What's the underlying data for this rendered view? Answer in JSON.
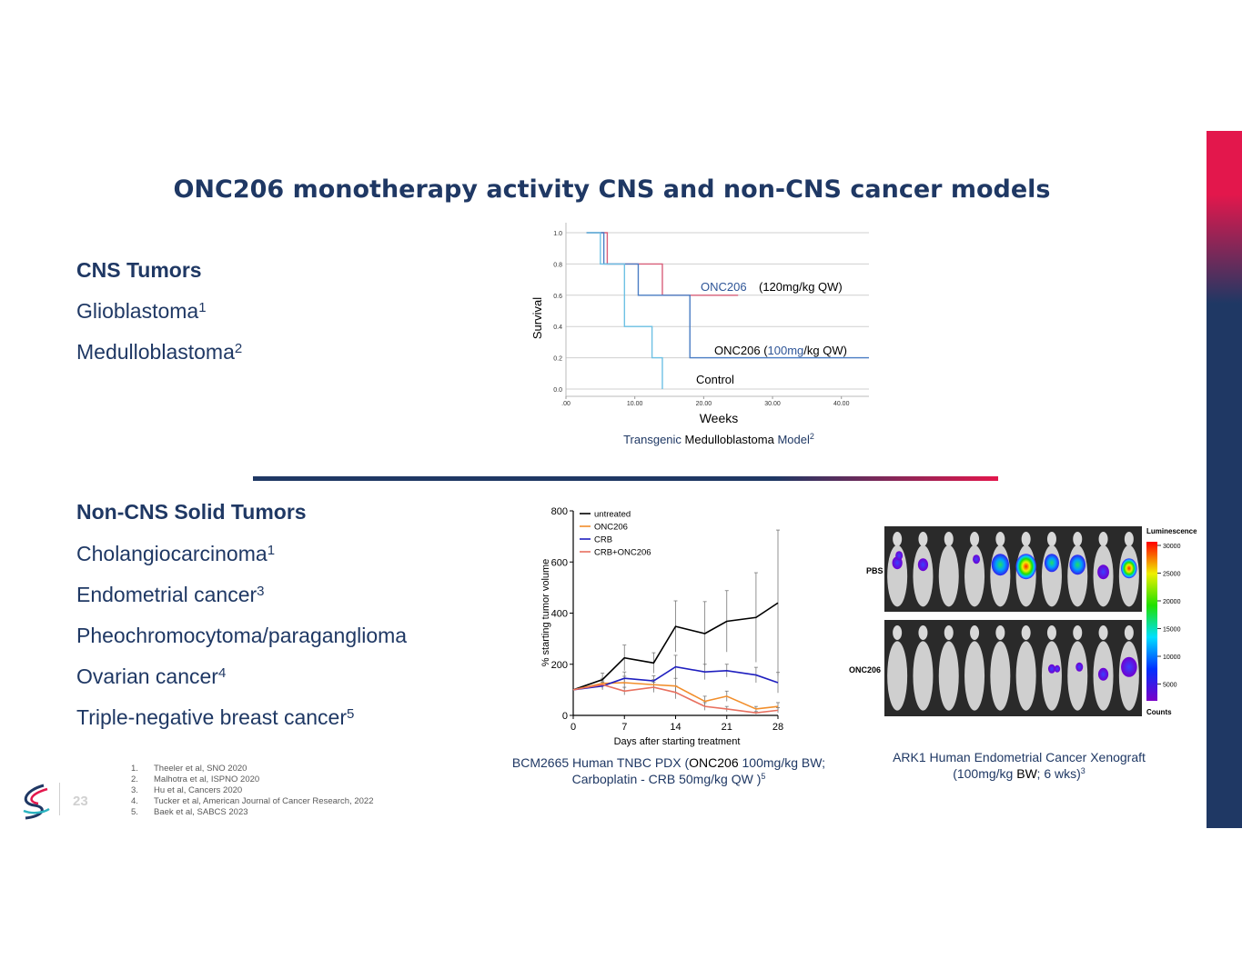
{
  "slide": {
    "title": "ONC206 monotherapy activity CNS and non-CNS cancer models",
    "page_number": "23",
    "colors": {
      "navy": "#1f3864",
      "magenta": "#e3174c"
    }
  },
  "cns": {
    "heading": "CNS Tumors",
    "items": [
      {
        "label": "Glioblastoma",
        "ref": "1"
      },
      {
        "label": "Medulloblastoma",
        "ref": "2"
      }
    ]
  },
  "non_cns": {
    "heading": "Non-CNS Solid Tumors",
    "items": [
      {
        "label": "Cholangiocarcinoma",
        "ref": "1"
      },
      {
        "label": "Endometrial cancer",
        "ref": "3"
      },
      {
        "label": "Pheochromocytoma/paraganglioma",
        "ref": ""
      },
      {
        "label": "Ovarian cancer",
        "ref": "4"
      },
      {
        "label": "Triple-negative breast cancer",
        "ref": "5"
      }
    ]
  },
  "survival_caption": {
    "p1": "Transgenic",
    "p2": "Medulloblastoma",
    "p3": "Model",
    "ref": "2"
  },
  "tnbc_caption": {
    "line1_a": "BCM2665 Human TNBC PDX (",
    "line1_b": "ONC206",
    "line1_c": " 100mg/kg BW;",
    "line2": "Carboplatin - CRB 50mg/kg QW )",
    "ref": "5"
  },
  "xenograft_caption": {
    "line1": "ARK1 Human Endometrial Cancer Xenograft",
    "line2_a": "(100mg/kg ",
    "line2_b": "BW",
    "line2_c": "; 6 wks)",
    "ref": "3"
  },
  "imaging": {
    "row_labels": [
      "PBS",
      "ONC206"
    ],
    "colorbar_title": "Luminescence",
    "colorbar_ticks": [
      "30000",
      "25000",
      "20000",
      "15000",
      "10000",
      "5000"
    ],
    "colorbar_unit": "Counts"
  },
  "footnotes": [
    {
      "num": "1.",
      "text": "Theeler et al, SNO 2020"
    },
    {
      "num": "2.",
      "text": "Malhotra et al, ISPNO 2020"
    },
    {
      "num": "3.",
      "text": "Hu et al, Cancers 2020"
    },
    {
      "num": "4.",
      "text": "Tucker et al, American Journal of Cancer Research, 2022"
    },
    {
      "num": "5.",
      "text": "Baek et al, SABCS 2023"
    }
  ],
  "chart_data": [
    {
      "type": "line",
      "id": "survival",
      "title": "Transgenic Medulloblastoma Model",
      "xlabel": "Weeks",
      "ylabel": "Survival",
      "xlim": [
        0,
        44
      ],
      "ylim": [
        0,
        1.0
      ],
      "x_ticks": [
        ".00",
        "10.00",
        "20.00",
        "30.00",
        "40.00"
      ],
      "x_tick_values": [
        0,
        10,
        20,
        30,
        40
      ],
      "y_ticks": [
        "0.0",
        "0.2",
        "0.4",
        "0.6",
        "0.8",
        "1.0"
      ],
      "y_tick_values": [
        0,
        0.2,
        0.4,
        0.6,
        0.8,
        1.0
      ],
      "grid": true,
      "annotations": {
        "onc120_a": "ONC206",
        "onc120_b": " (120mg/kg QW)",
        "onc100_a": "ONC206 (",
        "onc100_b": "100mg",
        "onc100_c": "/kg QW)",
        "control": "Control"
      },
      "series": [
        {
          "name": "ONC206 (120mg/kg QW)",
          "color": "#d95f7a",
          "x": [
            3,
            6,
            6,
            14,
            14,
            25
          ],
          "y": [
            1.0,
            1.0,
            0.8,
            0.8,
            0.6,
            0.6
          ]
        },
        {
          "name": "ONC206 (100mg/kg QW)",
          "color": "#4a7dc4",
          "x": [
            3,
            5.5,
            5.5,
            10.5,
            10.5,
            18,
            18,
            44
          ],
          "y": [
            1.0,
            1.0,
            0.8,
            0.8,
            0.6,
            0.6,
            0.2,
            0.2
          ]
        },
        {
          "name": "Control",
          "color": "#6ec1e4",
          "x": [
            3,
            5,
            5,
            8.5,
            8.5,
            12.5,
            12.5,
            14,
            14
          ],
          "y": [
            1.0,
            1.0,
            0.8,
            0.8,
            0.4,
            0.4,
            0.2,
            0.2,
            0.0
          ]
        }
      ]
    },
    {
      "type": "line",
      "id": "tnbc",
      "xlabel": "Days after starting treatment",
      "ylabel": "% starting tumor volume",
      "x_ticks": [
        "0",
        "7",
        "14",
        "21",
        "28"
      ],
      "x_tick_values": [
        0,
        7,
        14,
        21,
        28
      ],
      "y_ticks": [
        "0",
        "200",
        "400",
        "600",
        "800"
      ],
      "y_tick_values": [
        0,
        200,
        400,
        600,
        800
      ],
      "xlim": [
        0,
        28
      ],
      "ylim": [
        0,
        800
      ],
      "legend": "top-left",
      "series": [
        {
          "name": "untreated",
          "color": "#000000",
          "x": [
            0,
            4,
            7,
            11,
            14,
            18,
            21,
            25,
            28
          ],
          "y": [
            100,
            140,
            225,
            205,
            348,
            320,
            368,
            383,
            440
          ],
          "err": [
            0,
            25,
            50,
            40,
            100,
            125,
            120,
            175,
            285
          ]
        },
        {
          "name": "ONC206",
          "color": "#f28e2b",
          "x": [
            0,
            4,
            7,
            11,
            14,
            18,
            21,
            25,
            28
          ],
          "y": [
            100,
            125,
            128,
            120,
            115,
            55,
            75,
            25,
            35
          ],
          "err": [
            0,
            20,
            25,
            20,
            30,
            20,
            20,
            10,
            15
          ]
        },
        {
          "name": "CRB",
          "color": "#1f1fbf",
          "x": [
            0,
            4,
            7,
            11,
            14,
            18,
            21,
            25,
            28
          ],
          "y": [
            100,
            115,
            145,
            135,
            190,
            170,
            175,
            158,
            128
          ],
          "err": [
            0,
            15,
            25,
            20,
            45,
            30,
            25,
            30,
            40
          ]
        },
        {
          "name": "CRB+ONC206",
          "color": "#e8705f",
          "x": [
            0,
            4,
            7,
            11,
            14,
            18,
            21,
            25,
            28
          ],
          "y": [
            100,
            120,
            95,
            110,
            90,
            35,
            25,
            10,
            20
          ],
          "err": [
            0,
            15,
            15,
            20,
            25,
            15,
            10,
            5,
            10
          ]
        }
      ]
    }
  ]
}
